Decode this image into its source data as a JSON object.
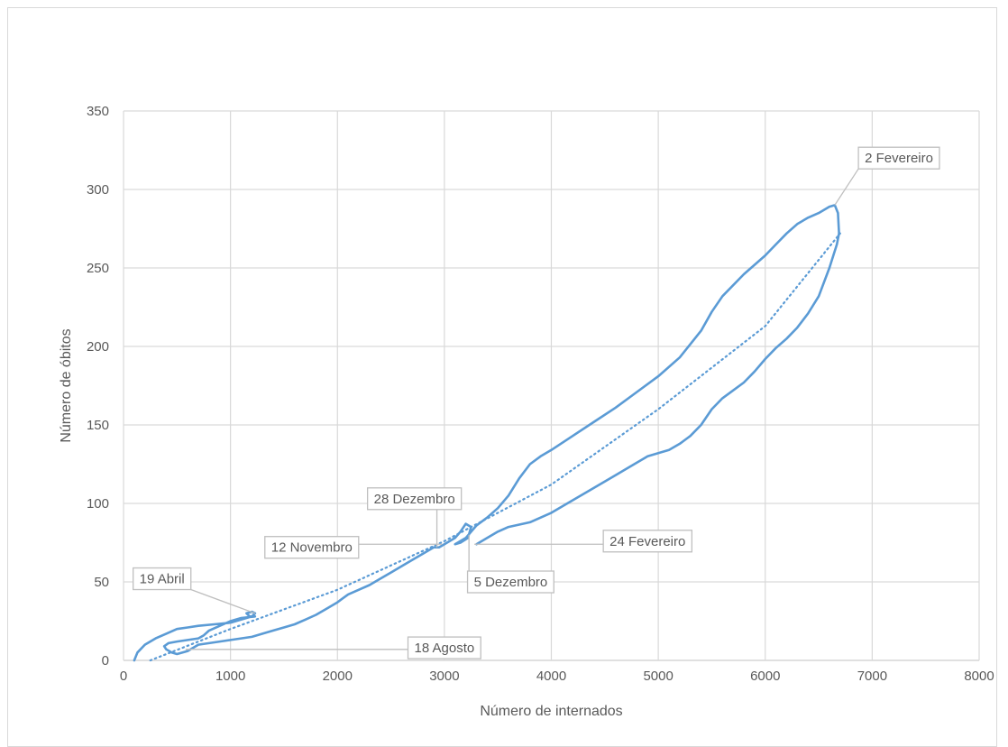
{
  "chart_data": {
    "type": "line",
    "title": "",
    "xlabel": "Número de internados",
    "ylabel": "Número de óbitos",
    "xlim": [
      0,
      8000
    ],
    "ylim": [
      0,
      350
    ],
    "x_ticks": [
      0,
      1000,
      2000,
      3000,
      4000,
      5000,
      6000,
      7000,
      8000
    ],
    "y_ticks": [
      0,
      50,
      100,
      150,
      200,
      250,
      300,
      350
    ],
    "x_tick_labels": [
      "0",
      "1000",
      "2000",
      "3000",
      "4000",
      "5000",
      "6000",
      "7000",
      "8000"
    ],
    "y_tick_labels": [
      "0",
      "50",
      "100",
      "150",
      "200",
      "250",
      "300",
      "350"
    ],
    "grid": true,
    "colors": {
      "series": "#5b9bd5",
      "grid": "#d9d9d9",
      "leader": "#bfbfbf",
      "text": "#595959"
    },
    "series": [
      {
        "style": "solid",
        "points": [
          [
            100,
            0
          ],
          [
            130,
            5
          ],
          [
            200,
            10
          ],
          [
            300,
            14
          ],
          [
            400,
            17
          ],
          [
            500,
            20
          ],
          [
            600,
            21
          ],
          [
            700,
            22
          ],
          [
            850,
            23
          ],
          [
            1000,
            24
          ],
          [
            1100,
            26
          ],
          [
            1200,
            28
          ],
          [
            1230,
            30
          ],
          [
            1200,
            31
          ],
          [
            1150,
            30
          ],
          [
            1180,
            28
          ],
          [
            1230,
            28
          ],
          [
            1100,
            27
          ],
          [
            1000,
            25
          ],
          [
            900,
            22
          ],
          [
            800,
            19
          ],
          [
            750,
            16
          ],
          [
            700,
            14
          ],
          [
            600,
            13
          ],
          [
            500,
            12
          ],
          [
            420,
            11
          ],
          [
            380,
            9
          ],
          [
            400,
            7
          ],
          [
            450,
            5
          ],
          [
            500,
            4
          ],
          [
            600,
            6
          ],
          [
            700,
            10
          ],
          [
            800,
            11
          ],
          [
            900,
            12
          ],
          [
            1000,
            13
          ],
          [
            1100,
            14
          ],
          [
            1200,
            15
          ],
          [
            1300,
            17
          ],
          [
            1400,
            19
          ],
          [
            1500,
            21
          ],
          [
            1600,
            23
          ],
          [
            1700,
            26
          ],
          [
            1800,
            29
          ],
          [
            1900,
            33
          ],
          [
            2000,
            37
          ],
          [
            2100,
            42
          ],
          [
            2200,
            45
          ],
          [
            2300,
            48
          ],
          [
            2400,
            52
          ],
          [
            2500,
            56
          ],
          [
            2600,
            60
          ],
          [
            2700,
            64
          ],
          [
            2800,
            68
          ],
          [
            2900,
            72
          ],
          [
            2950,
            72
          ],
          [
            3000,
            74
          ],
          [
            3050,
            76
          ],
          [
            3100,
            78
          ],
          [
            3150,
            82
          ],
          [
            3200,
            87
          ],
          [
            3250,
            85
          ],
          [
            3220,
            78
          ],
          [
            3150,
            75
          ],
          [
            3100,
            74
          ],
          [
            3200,
            78
          ],
          [
            3300,
            86
          ],
          [
            3400,
            91
          ],
          [
            3500,
            97
          ],
          [
            3600,
            105
          ],
          [
            3700,
            116
          ],
          [
            3800,
            125
          ],
          [
            3900,
            130
          ],
          [
            4000,
            134
          ],
          [
            4200,
            143
          ],
          [
            4400,
            152
          ],
          [
            4600,
            161
          ],
          [
            4800,
            171
          ],
          [
            5000,
            181
          ],
          [
            5200,
            193
          ],
          [
            5400,
            210
          ],
          [
            5500,
            222
          ],
          [
            5600,
            232
          ],
          [
            5800,
            246
          ],
          [
            6000,
            258
          ],
          [
            6100,
            265
          ],
          [
            6200,
            272
          ],
          [
            6300,
            278
          ],
          [
            6400,
            282
          ],
          [
            6500,
            285
          ],
          [
            6600,
            289
          ],
          [
            6650,
            290
          ],
          [
            6680,
            285
          ],
          [
            6690,
            272
          ],
          [
            6670,
            265
          ],
          [
            6600,
            250
          ],
          [
            6500,
            232
          ],
          [
            6400,
            221
          ],
          [
            6300,
            212
          ],
          [
            6200,
            205
          ],
          [
            6100,
            199
          ],
          [
            6000,
            192
          ],
          [
            5900,
            184
          ],
          [
            5800,
            177
          ],
          [
            5700,
            172
          ],
          [
            5600,
            167
          ],
          [
            5500,
            160
          ],
          [
            5400,
            150
          ],
          [
            5300,
            143
          ],
          [
            5200,
            138
          ],
          [
            5100,
            134
          ],
          [
            5000,
            132
          ],
          [
            4900,
            130
          ],
          [
            4800,
            126
          ],
          [
            4600,
            118
          ],
          [
            4400,
            110
          ],
          [
            4200,
            102
          ],
          [
            4000,
            94
          ],
          [
            3800,
            88
          ],
          [
            3600,
            85
          ],
          [
            3500,
            82
          ],
          [
            3400,
            78
          ],
          [
            3300,
            74
          ]
        ]
      },
      {
        "style": "dotted",
        "points": [
          [
            250,
            0
          ],
          [
            1000,
            20
          ],
          [
            2000,
            45
          ],
          [
            3000,
            76
          ],
          [
            4000,
            112
          ],
          [
            5000,
            160
          ],
          [
            6000,
            213
          ],
          [
            6700,
            272
          ]
        ]
      }
    ],
    "annotations": [
      {
        "text": "2 Fevereiro",
        "point": [
          6650,
          290
        ],
        "box_at": [
          7250,
          320
        ]
      },
      {
        "text": "28 Dezembro",
        "point": [
          2930,
          72
        ],
        "box_at": [
          2720,
          103
        ]
      },
      {
        "text": "12 Novembro",
        "point": [
          2980,
          74
        ],
        "box_at": [
          1760,
          72
        ]
      },
      {
        "text": "24 Fevereiro",
        "point": [
          3280,
          74
        ],
        "box_at": [
          4900,
          76
        ]
      },
      {
        "text": "5 Dezembro",
        "point": [
          3230,
          80
        ],
        "box_at": [
          3620,
          50
        ]
      },
      {
        "text": "19 Abril",
        "point": [
          1230,
          30
        ],
        "box_at": [
          360,
          52
        ]
      },
      {
        "text": "18 Agosto",
        "point": [
          580,
          7
        ],
        "box_at": [
          3000,
          8
        ]
      }
    ]
  }
}
